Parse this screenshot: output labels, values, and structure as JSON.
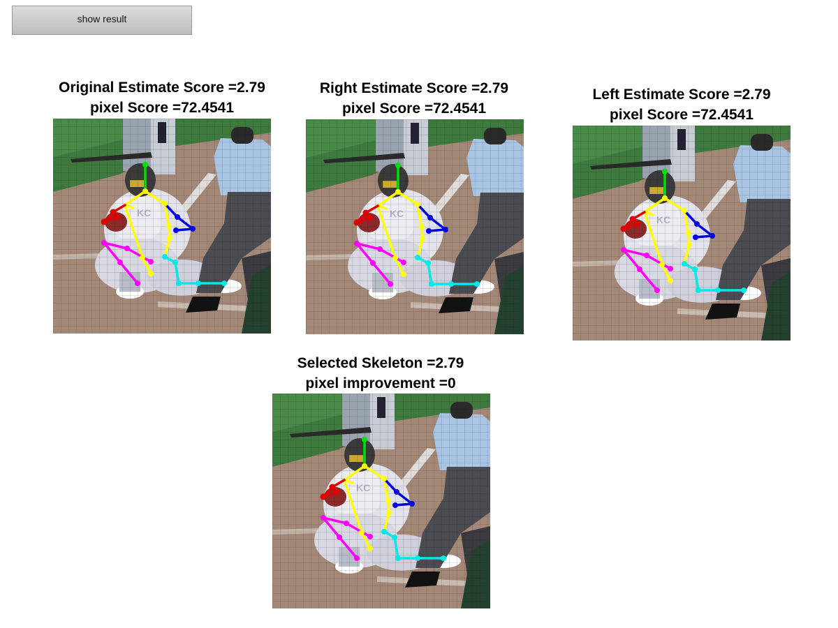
{
  "toolbar": {
    "show_result_label": "show result"
  },
  "panels": [
    {
      "id": "original",
      "title_line1": "Original Estimate Score =2.79",
      "title_line2": "pixel Score =72.4541"
    },
    {
      "id": "right",
      "title_line1": "Right Estimate Score =2.79",
      "title_line2": "pixel Score =72.4541"
    },
    {
      "id": "left",
      "title_line1": "Left Estimate Score =2.79",
      "title_line2": "pixel Score =72.4541"
    },
    {
      "id": "selected",
      "title_line1": "Selected Skeleton =2.79",
      "title_line2": "pixel improvement =0"
    }
  ],
  "limb_colors": {
    "head": "#00e000",
    "torso": "#ffff00",
    "left_arm": "#e00000",
    "right_arm": "#0000e0",
    "left_leg": "#ff00ff",
    "right_leg": "#00e8e8"
  }
}
